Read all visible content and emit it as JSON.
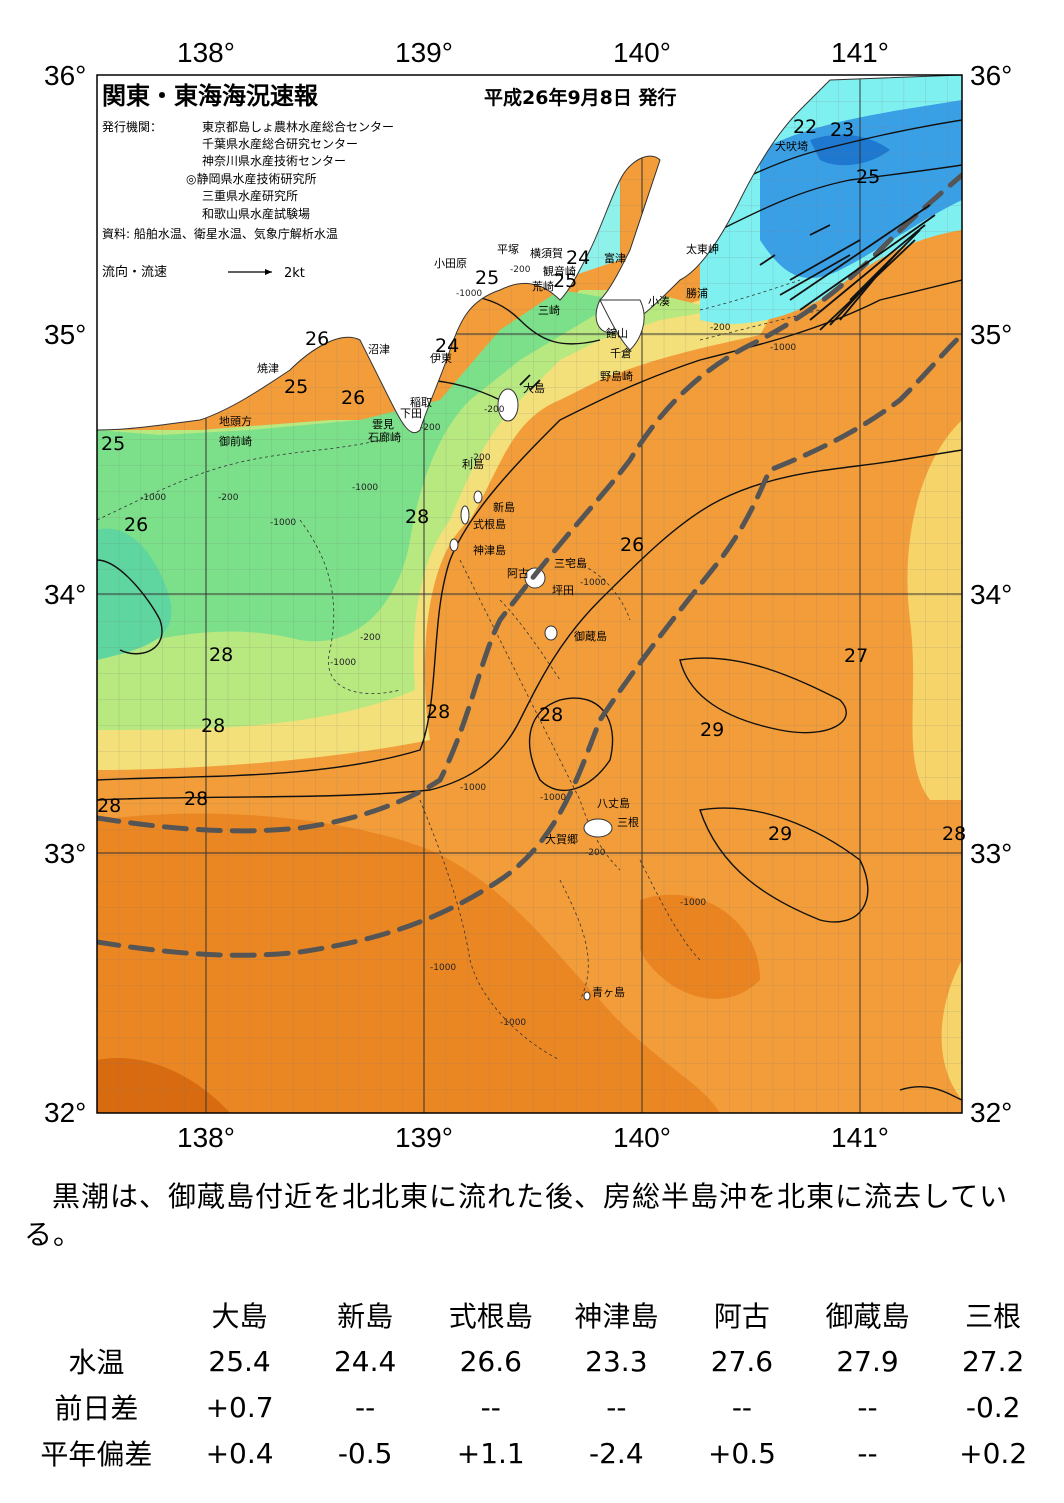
{
  "header": {
    "title": "関東・東海海況速報",
    "date": "平成26年9月8日 発行",
    "issuer_label": "発行機関：",
    "issuers": [
      "東京都島しょ農林水産総合センター",
      "千葉県水産総合研究センター",
      "神奈川県水産技術センター",
      "◎静岡県水産技術研究所",
      "三重県水産研究所",
      "和歌山県水産試験場"
    ],
    "source": "資料: 船舶水温、衛星水温、気象庁解析水温",
    "flow_legend_label": "流向・流速",
    "flow_legend_unit": "2kt"
  },
  "axes": {
    "lon_labels": [
      "138°",
      "139°",
      "140°",
      "141°"
    ],
    "lat_labels": [
      "36°",
      "35°",
      "34°",
      "33°",
      "32°"
    ]
  },
  "places": [
    {
      "id": "inubouzaki",
      "label": "犬吠埼"
    },
    {
      "id": "taitomisaki",
      "label": "太東岬"
    },
    {
      "id": "katsuura",
      "label": "勝浦"
    },
    {
      "id": "kominato",
      "label": "小湊"
    },
    {
      "id": "futtsu",
      "label": "富津"
    },
    {
      "id": "kannonzaki",
      "label": "観音崎"
    },
    {
      "id": "yokosuka",
      "label": "横須賀"
    },
    {
      "id": "arasaki",
      "label": "荒崎"
    },
    {
      "id": "misaki",
      "label": "三崎"
    },
    {
      "id": "tateyama",
      "label": "館山"
    },
    {
      "id": "chikura",
      "label": "千倉"
    },
    {
      "id": "nojimazaki",
      "label": "野島崎"
    },
    {
      "id": "hiratsuka",
      "label": "平塚"
    },
    {
      "id": "odawara",
      "label": "小田原"
    },
    {
      "id": "numazu",
      "label": "沼津"
    },
    {
      "id": "ito",
      "label": "伊東"
    },
    {
      "id": "oshima",
      "label": "大島"
    },
    {
      "id": "inatori",
      "label": "稲取"
    },
    {
      "id": "shimoda",
      "label": "下田"
    },
    {
      "id": "kumomi",
      "label": "雲見"
    },
    {
      "id": "irozaki",
      "label": "石廊崎"
    },
    {
      "id": "yaizu",
      "label": "焼津"
    },
    {
      "id": "chitoukata",
      "label": "地頭方"
    },
    {
      "id": "omaezaki",
      "label": "御前崎"
    },
    {
      "id": "toshima",
      "label": "利島"
    },
    {
      "id": "niijima",
      "label": "新島"
    },
    {
      "id": "shikinejima",
      "label": "式根島"
    },
    {
      "id": "kozushima",
      "label": "神津島"
    },
    {
      "id": "miyakejima",
      "label": "三宅島"
    },
    {
      "id": "ako",
      "label": "阿古"
    },
    {
      "id": "tsubota",
      "label": "坪田"
    },
    {
      "id": "mikurajima",
      "label": "御蔵島"
    },
    {
      "id": "hachijojima",
      "label": "八丈島"
    },
    {
      "id": "mitsune",
      "label": "三根"
    },
    {
      "id": "okago",
      "label": "大賀郷"
    },
    {
      "id": "aogashima",
      "label": "青ヶ島"
    }
  ],
  "temp_labels": [
    "22",
    "23",
    "25",
    "24",
    "25",
    "25",
    "24",
    "26",
    "25",
    "26",
    "25",
    "26",
    "28",
    "26",
    "28",
    "27",
    "28",
    "28",
    "28",
    "29",
    "28",
    "28"
  ],
  "depth_labels": [
    "-1000",
    "-200",
    "-200",
    "-1000",
    "-200",
    "-200",
    "-1000",
    "-200",
    "-1000",
    "-1000",
    "-1000",
    "-200",
    "-1000",
    "-1000",
    "-200",
    "-1000",
    "-1000",
    "-200",
    "-1000",
    "-1000"
  ],
  "summary": "黒潮は、御蔵島付近を北北東に流れた後、房総半島沖を北東に流去している。",
  "stats": {
    "stations": [
      "大島",
      "新島",
      "式根島",
      "神津島",
      "阿古",
      "御蔵島",
      "三根"
    ],
    "rows": [
      {
        "label": "水温",
        "values": [
          "25.4",
          "24.4",
          "26.6",
          "23.3",
          "27.6",
          "27.9",
          "27.2"
        ]
      },
      {
        "label": "前日差",
        "values": [
          "+0.7",
          "--",
          "--",
          "--",
          "--",
          "--",
          "-0.2"
        ]
      },
      {
        "label": "平年偏差",
        "values": [
          "+0.4",
          "-0.5",
          "+1.1",
          "-2.4",
          "+0.5",
          "--",
          "+0.2"
        ]
      }
    ]
  },
  "colors": {
    "land": "#ffffff",
    "sea_cold_blue": "#3aa0e6",
    "sea_cyan": "#7ff0f0",
    "sea_green": "#6fe08c",
    "sea_lightgreen": "#a8ea80",
    "sea_yellow": "#f7e06a",
    "sea_lightorange": "#f6b85c",
    "sea_orange": "#f29d3a",
    "sea_darkorange": "#ea8420",
    "kuroshio_axis": "#555555"
  }
}
